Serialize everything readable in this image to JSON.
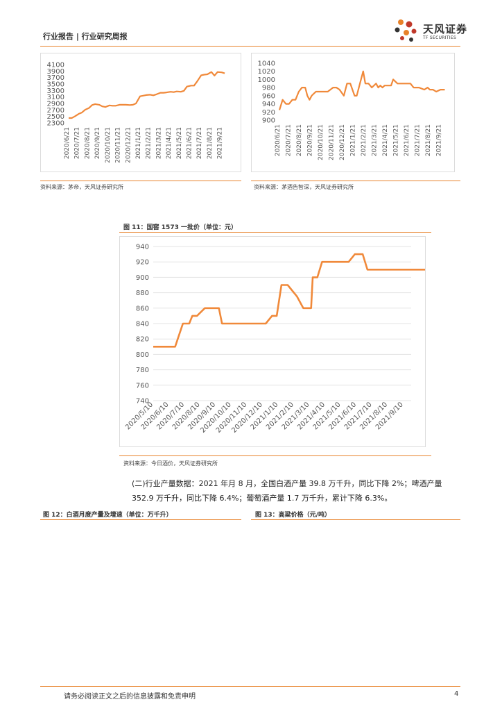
{
  "header": {
    "report_type": "行业报告 | 行业研究周报",
    "brand_name": "天风证券",
    "brand_sub": "TF SECURITIES"
  },
  "colors": {
    "accent": "#e8822a",
    "line": "#f0893a"
  },
  "chart_top_left": {
    "source": "资料来源：茅帝，天风证券研究所"
  },
  "chart_top_right": {
    "source": "资料来源：茅酒告智深，天风证券研究所"
  },
  "figure11": {
    "title": "图 11：国窖 1573 一批价（单位：元）",
    "source": "资料来源：今日酒价，天风证券研究所"
  },
  "paragraph": {
    "line1": "(二)行业产量数据：2021 年月 8 月，全国白酒产量 39.8 万千升，同比下降 2%；啤酒产量",
    "line2": "352.9 万千升，同比下降 6.4%；葡萄酒产量 1.7 万千升，累计下降 6.3%。"
  },
  "figure12": {
    "title": "图 12：白酒月度产量及增速（单位：万千升）"
  },
  "figure13": {
    "title": "图 13：高粱价格（元/吨）"
  },
  "footer": {
    "disclaimer": "请务必阅读正文之后的信息披露和免责申明",
    "page": "4"
  },
  "chart_data": [
    {
      "type": "line",
      "y_ticks": [
        "4100",
        "3900",
        "3700",
        "3500",
        "3300",
        "3100",
        "2900",
        "2700",
        "2500",
        "2300"
      ],
      "ylim": [
        2300,
        4100
      ],
      "categories": [
        "2020/6/21",
        "2020/7/21",
        "2020/8/21",
        "2020/9/21",
        "2020/10/21",
        "2020/11/21",
        "2020/12/21",
        "2021/1/21",
        "2021/2/21",
        "2021/3/21",
        "2021/4/21",
        "2021/5/21",
        "2021/6/21",
        "2021/7/21",
        "2021/8/21",
        "2021/9/21"
      ],
      "x": [
        0,
        0.3,
        0.6,
        1,
        1.3,
        1.6,
        2,
        2.3,
        2.6,
        3,
        3.3,
        3.6,
        4,
        4.3,
        4.6,
        5,
        5.3,
        5.6,
        6,
        6.3,
        6.6,
        7,
        7.3,
        7.6,
        8,
        8.3,
        8.6,
        9,
        9.3,
        9.6,
        10,
        10.3,
        10.6,
        11,
        11.3,
        11.6,
        12,
        12.3,
        12.6,
        13,
        13.3,
        13.6,
        14,
        14.3,
        14.6,
        15,
        15.3
      ],
      "values": [
        2450,
        2450,
        2500,
        2580,
        2620,
        2700,
        2760,
        2850,
        2880,
        2860,
        2810,
        2790,
        2840,
        2830,
        2830,
        2860,
        2860,
        2860,
        2850,
        2860,
        2900,
        3120,
        3140,
        3160,
        3170,
        3150,
        3180,
        3230,
        3230,
        3240,
        3260,
        3250,
        3270,
        3260,
        3290,
        3420,
        3450,
        3450,
        3580,
        3770,
        3790,
        3800,
        3870,
        3760,
        3870,
        3860,
        3830
      ]
    },
    {
      "type": "line",
      "y_ticks": [
        "1040",
        "1020",
        "1000",
        "980",
        "960",
        "940",
        "920",
        "900"
      ],
      "ylim": [
        900,
        1040
      ],
      "categories": [
        "2020/6/21",
        "2020/7/21",
        "2020/8/21",
        "2020/9/21",
        "2020/10/21",
        "2020/11/21",
        "2020/12/21",
        "2021/1/21",
        "2021/2/21",
        "2021/3/21",
        "2021/4/21",
        "2021/5/21",
        "2021/6/21",
        "2021/7/21",
        "2021/8/21",
        "2021/9/21"
      ],
      "x": [
        0,
        0.3,
        0.6,
        0.9,
        1.2,
        1.5,
        1.8,
        2.1,
        2.4,
        2.6,
        2.8,
        3,
        3.2,
        3.4,
        3.6,
        3.8,
        4,
        4.2,
        4.5,
        5,
        5.3,
        5.6,
        6,
        6.3,
        6.6,
        6.8,
        7,
        7.2,
        7.5,
        7.8,
        8,
        8.3,
        8.6,
        9,
        9.2,
        9.4,
        9.6,
        9.8,
        10,
        10.2,
        10.4,
        10.6,
        10.8,
        11,
        11.3,
        11.6,
        12,
        12.2,
        12.5,
        13,
        13.5,
        13.8,
        14,
        14.3,
        14.6,
        15,
        15.2,
        15.4
      ],
      "values": [
        925,
        950,
        940,
        940,
        950,
        950,
        970,
        980,
        980,
        960,
        950,
        960,
        965,
        970,
        970,
        970,
        970,
        970,
        970,
        980,
        980,
        975,
        960,
        990,
        990,
        975,
        960,
        960,
        990,
        1020,
        990,
        990,
        980,
        990,
        980,
        985,
        980,
        985,
        985,
        985,
        985,
        1000,
        995,
        990,
        990,
        990,
        990,
        990,
        980,
        980,
        975,
        980,
        975,
        975,
        970,
        975,
        975,
        975
      ]
    },
    {
      "type": "line",
      "y_ticks": [
        "940",
        "920",
        "900",
        "880",
        "860",
        "840",
        "820",
        "800",
        "780",
        "760",
        "740"
      ],
      "ylim": [
        740,
        940
      ],
      "categories": [
        "2020/5/10",
        "2020/6/10",
        "2020/7/10",
        "2020/8/10",
        "2020/9/10",
        "2020/10/10",
        "2020/11/10",
        "2020/12/10",
        "2021/1/10",
        "2021/2/10",
        "2021/3/10",
        "2021/4/10",
        "2021/5/10",
        "2021/6/10",
        "2021/7/10",
        "2021/8/10",
        "2021/9/10"
      ],
      "x": [
        0,
        1,
        1.4,
        1.9,
        2.3,
        2.5,
        2.8,
        3.3,
        3.6,
        3.9,
        4.2,
        4.4,
        4.6,
        5.2,
        5.4,
        5.8,
        6.5,
        7.2,
        7.6,
        7.9,
        8.2,
        8.6,
        9.2,
        9.6,
        10.1,
        10.2,
        10.4,
        10.5,
        10.8,
        11.2,
        11.6,
        12.1,
        12.4,
        12.5,
        12.9,
        13.4,
        13.7,
        14.4,
        15,
        15.6,
        16.3,
        16.5,
        17.4
      ],
      "values": [
        810,
        810,
        810,
        840,
        840,
        850,
        850,
        860,
        860,
        860,
        860,
        840,
        840,
        840,
        840,
        840,
        840,
        840,
        850,
        850,
        890,
        890,
        875,
        860,
        860,
        900,
        900,
        900,
        920,
        920,
        920,
        920,
        920,
        920,
        930,
        930,
        910,
        910,
        910,
        910,
        910,
        910,
        910
      ]
    }
  ]
}
